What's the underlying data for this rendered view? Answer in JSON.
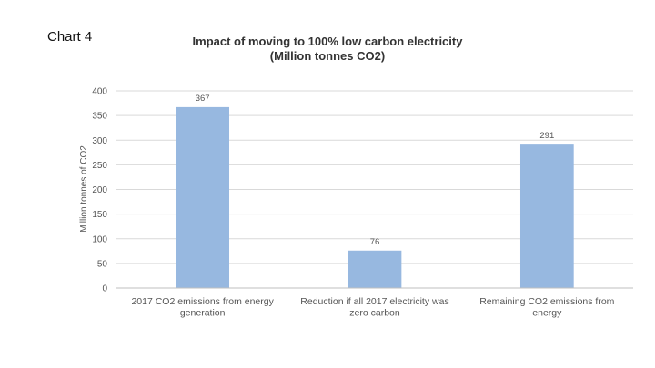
{
  "page": {
    "label": "Chart 4"
  },
  "chart_data": {
    "type": "bar",
    "title": "Impact of moving to 100% low carbon electricity",
    "subtitle": "(Million tonnes CO2)",
    "ylabel": "Million tonnes of CO2",
    "xlabel": "",
    "ylim": [
      0,
      400
    ],
    "yticks": [
      0,
      50,
      100,
      150,
      200,
      250,
      300,
      350,
      400
    ],
    "grid": true,
    "categories": [
      [
        "2017 CO2 emissions from energy",
        "generation"
      ],
      [
        "Reduction if all 2017 electricity was",
        "zero carbon"
      ],
      [
        "Remaining CO2 emissions from",
        "energy"
      ]
    ],
    "values": [
      367,
      76,
      291
    ],
    "data_labels": [
      "367",
      "76",
      "291"
    ],
    "bar_color": "#97b8e0",
    "grid_color": "#d9d9d9",
    "axis_color": "#bfbfbf"
  }
}
